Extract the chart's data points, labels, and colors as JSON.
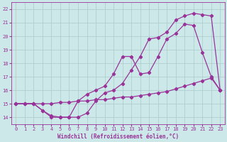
{
  "xlabel": "Windchill (Refroidissement éolien,°C)",
  "bg_color": "#cce8e8",
  "grid_color": "#aacccc",
  "line_color": "#993399",
  "xlim": [
    -0.5,
    23.5
  ],
  "ylim": [
    13.5,
    22.5
  ],
  "yticks": [
    14,
    15,
    16,
    17,
    18,
    19,
    20,
    21,
    22
  ],
  "xticks": [
    0,
    1,
    2,
    3,
    4,
    5,
    6,
    7,
    8,
    9,
    10,
    11,
    12,
    13,
    14,
    15,
    16,
    17,
    18,
    19,
    20,
    21,
    22,
    23
  ],
  "s1_x": [
    0,
    1,
    2,
    3,
    4,
    5,
    6,
    7,
    8,
    9,
    10,
    11,
    12,
    13,
    14,
    15,
    16,
    17,
    18,
    19,
    20,
    21,
    22,
    23
  ],
  "s1_y": [
    15.0,
    15.0,
    15.0,
    14.5,
    14.0,
    14.0,
    14.0,
    14.0,
    14.3,
    15.2,
    15.8,
    16.0,
    16.5,
    17.5,
    18.5,
    19.8,
    19.9,
    20.3,
    21.2,
    21.5,
    21.7,
    21.6,
    21.5,
    16.0
  ],
  "s2_x": [
    0,
    1,
    2,
    3,
    4,
    5,
    6,
    7,
    8,
    9,
    10,
    11,
    12,
    13,
    14,
    15,
    16,
    17,
    18,
    19,
    20,
    21,
    22,
    23
  ],
  "s2_y": [
    15.0,
    15.0,
    15.0,
    14.5,
    14.1,
    14.0,
    14.0,
    15.2,
    15.7,
    16.0,
    16.3,
    17.2,
    18.5,
    18.5,
    17.2,
    17.3,
    18.5,
    19.8,
    20.2,
    20.9,
    20.8,
    18.8,
    17.0,
    16.0
  ],
  "s3_x": [
    0,
    1,
    2,
    3,
    4,
    5,
    6,
    7,
    8,
    9,
    10,
    11,
    12,
    13,
    14,
    15,
    16,
    17,
    18,
    19,
    20,
    21,
    22,
    23
  ],
  "s3_y": [
    15.0,
    15.0,
    15.0,
    15.0,
    15.0,
    15.1,
    15.1,
    15.2,
    15.2,
    15.3,
    15.3,
    15.4,
    15.5,
    15.5,
    15.6,
    15.7,
    15.8,
    15.9,
    16.1,
    16.3,
    16.5,
    16.7,
    16.9,
    16.0
  ]
}
